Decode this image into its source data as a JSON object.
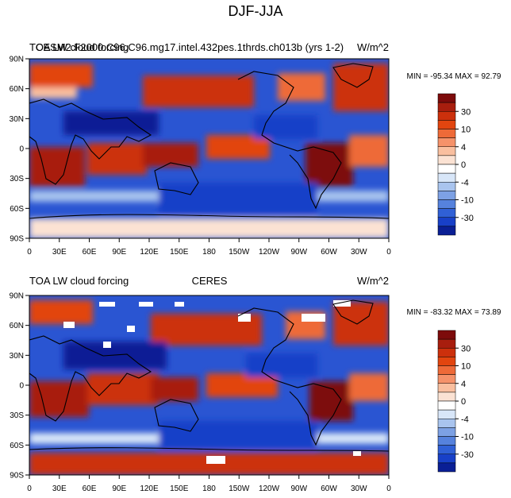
{
  "main_title": "DJF-JJA",
  "colorbar_levels": [
    "30",
    "10",
    "4",
    "0",
    "-4",
    "-10",
    "-30"
  ],
  "colors": {
    "palette": [
      "#7d0b0b",
      "#a81e0e",
      "#cc300c",
      "#e2450f",
      "#ee6a38",
      "#f5926a",
      "#f9bf9f",
      "#fbe2d3",
      "#ffffff",
      "#d8e6f8",
      "#a9c4ee",
      "#7da1e4",
      "#5682dd",
      "#3060d6",
      "#1840c8",
      "#0a1f95"
    ],
    "ocean_neutral": "#2a55d2",
    "land_outline": "#000000"
  },
  "panels": [
    {
      "id": "top",
      "title_left_overlay_a": "TOA LW cloud forcing",
      "title_left_overlay_b": "CESM2.F2000.C96.C96.mg17.intel.432pes.1thrds.ch013b (yrs 1-2)",
      "units": "W/m^2",
      "stats": "MIN = -95.34 MAX =  92.79",
      "lat_ticks": [
        "90N",
        "60N",
        "30N",
        "0",
        "30S",
        "60S",
        "90S"
      ],
      "lon_ticks": [
        "0",
        "30E",
        "60E",
        "90E",
        "120E",
        "150E",
        "180",
        "150W",
        "120W",
        "90W",
        "60W",
        "30W",
        "0"
      ]
    },
    {
      "id": "bottom",
      "title_left": "TOA LW cloud forcing",
      "title_center": "CERES",
      "units": "W/m^2",
      "stats": "MIN = -83.32 MAX =  73.89",
      "lat_ticks": [
        "90N",
        "60N",
        "30N",
        "0",
        "30S",
        "60S",
        "90S"
      ],
      "lon_ticks": [
        "0",
        "30E",
        "60E",
        "90E",
        "120E",
        "150E",
        "180",
        "150W",
        "120W",
        "90W",
        "60W",
        "30W",
        "0"
      ]
    }
  ],
  "icons": [
    "coastline-outline",
    "colorbar-triangle-ends"
  ]
}
